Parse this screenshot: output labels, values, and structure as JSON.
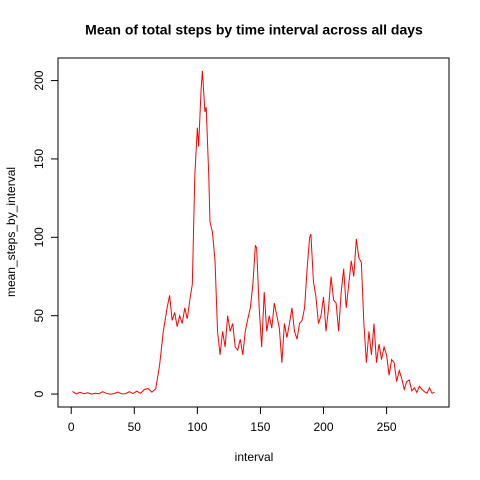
{
  "chart_data": {
    "type": "line",
    "title": "Mean of total steps by time interval across all days",
    "x_label": "interval",
    "y_label": "mean_steps_by_interval",
    "color": "#ff0000",
    "x": [
      1,
      4,
      7,
      10,
      13,
      16,
      19,
      22,
      25,
      28,
      31,
      34,
      37,
      40,
      43,
      46,
      49,
      52,
      55,
      58,
      61,
      64,
      67,
      70,
      73,
      76,
      78,
      80,
      82,
      84,
      86,
      88,
      90,
      92,
      94,
      96,
      98,
      100,
      101,
      103,
      104,
      106,
      107,
      109,
      110,
      112,
      114,
      116,
      118,
      120,
      122,
      124,
      126,
      128,
      130,
      132,
      134,
      136,
      138,
      140,
      142,
      144,
      146,
      147,
      149,
      151,
      153,
      155,
      157,
      159,
      161,
      163,
      165,
      167,
      169,
      171,
      173,
      175,
      177,
      179,
      181,
      183,
      185,
      187,
      189,
      190,
      192,
      194,
      196,
      198,
      200,
      202,
      204,
      206,
      208,
      210,
      212,
      214,
      216,
      218,
      220,
      222,
      224,
      226,
      228,
      230,
      232,
      234,
      236,
      238,
      240,
      242,
      244,
      246,
      248,
      250,
      252,
      254,
      256,
      258,
      260,
      262,
      264,
      266,
      268,
      270,
      272,
      274,
      276,
      278,
      280,
      282,
      284,
      286,
      288
    ],
    "values": [
      1.7,
      0.1,
      1.1,
      0.2,
      0.8,
      0,
      0.5,
      0.2,
      1.5,
      0.4,
      0,
      0.3,
      1.3,
      0.1,
      0.2,
      1.5,
      0.3,
      1.8,
      0.5,
      3,
      3.5,
      1.2,
      3.4,
      18,
      40,
      55,
      63,
      47,
      52,
      43,
      50,
      45,
      55,
      48,
      60,
      70,
      140,
      170,
      158,
      195,
      206.2,
      180,
      183,
      140,
      110,
      103,
      85,
      40,
      25,
      40,
      30,
      50,
      40,
      45,
      30,
      28,
      35,
      25,
      40,
      48,
      55,
      70,
      95,
      93,
      55,
      30,
      65,
      40,
      50,
      42,
      58,
      50,
      42,
      20,
      45,
      36,
      45,
      55,
      40,
      35,
      45,
      47,
      55,
      80,
      100,
      102,
      72,
      62,
      45,
      50,
      62,
      40,
      55,
      75,
      60,
      58,
      40,
      65,
      80,
      55,
      70,
      85,
      75,
      99,
      87,
      84,
      45,
      20,
      40,
      25,
      45,
      20,
      32,
      22,
      30,
      25,
      12,
      22,
      20,
      8,
      15,
      10,
      3,
      8,
      9,
      2,
      4,
      1,
      5,
      3,
      1.5,
      0.5,
      4,
      0.5,
      1.1
    ],
    "xlim": [
      -10.48,
      299.48
    ],
    "ylim": [
      -8.25,
      214.4
    ],
    "xticks": [
      0,
      50,
      100,
      150,
      200,
      250
    ],
    "yticks": [
      0,
      50,
      100,
      150,
      200
    ]
  }
}
